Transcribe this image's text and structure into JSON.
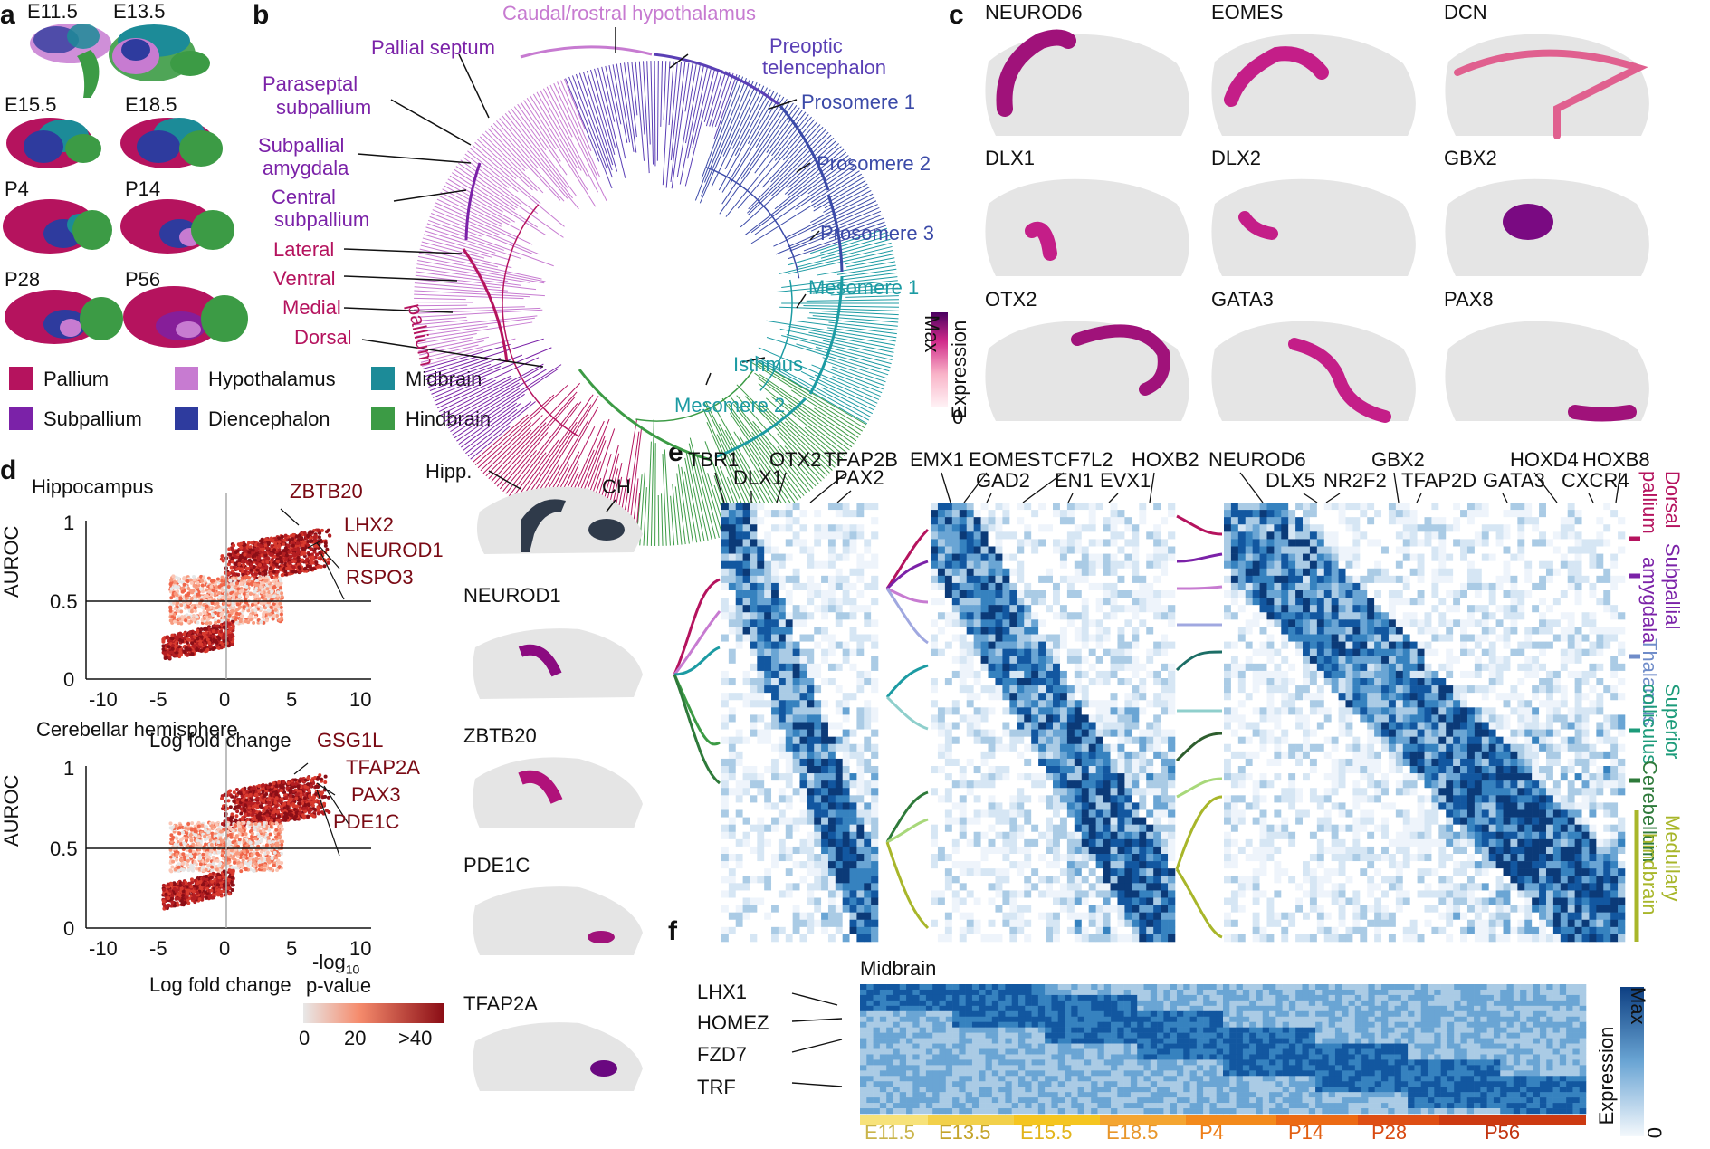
{
  "panels": {
    "a": "a",
    "b": "b",
    "c": "c",
    "d": "d",
    "e": "e",
    "f": "f"
  },
  "panel_a": {
    "stages": [
      "E11.5",
      "E13.5",
      "E15.5",
      "E18.5",
      "P4",
      "P14",
      "P28",
      "P56"
    ],
    "legend": [
      {
        "label": "Pallium",
        "color": "#b5135e"
      },
      {
        "label": "Hypothalamus",
        "color": "#c77bd1"
      },
      {
        "label": "Midbrain",
        "color": "#1c8b98"
      },
      {
        "label": "Subpallium",
        "color": "#7b22a8"
      },
      {
        "label": "Diencephalon",
        "color": "#2e3b9e"
      },
      {
        "label": "Hindbrain",
        "color": "#3c9b45"
      }
    ]
  },
  "panel_b": {
    "labels": [
      {
        "text": "Caudal/rostral hypothalamus",
        "color": "#c77bd1"
      },
      {
        "text": "Pallial septum",
        "color": "#7b22a8"
      },
      {
        "text": "Preoptic",
        "color": "#5a3fb5"
      },
      {
        "text": "telencephalon",
        "color": "#5a3fb5"
      },
      {
        "text": "Paraseptal",
        "color": "#7b22a8"
      },
      {
        "text": "subpallium",
        "color": "#7b22a8"
      },
      {
        "text": "Prosomere 1",
        "color": "#3b4aa8"
      },
      {
        "text": "Subpallial",
        "color": "#7b22a8"
      },
      {
        "text": "amygdala",
        "color": "#7b22a8"
      },
      {
        "text": "Prosomere 2",
        "color": "#3b4aa8"
      },
      {
        "text": "Central",
        "color": "#7b22a8"
      },
      {
        "text": "subpallium",
        "color": "#7b22a8"
      },
      {
        "text": "Prosomere 3",
        "color": "#3b4aa8"
      },
      {
        "text": "Lateral",
        "color": "#b5135e"
      },
      {
        "text": "Ventral",
        "color": "#b5135e"
      },
      {
        "text": "Mesomere 1",
        "color": "#1c9ba3"
      },
      {
        "text": "Medial",
        "color": "#b5135e"
      },
      {
        "text": "Dorsal",
        "color": "#b5135e"
      },
      {
        "text": "Isthmus",
        "color": "#1c9ba3"
      },
      {
        "text": "Mesomere 2",
        "color": "#1c9ba3"
      },
      {
        "text": "pallium",
        "color": "#b5135e"
      }
    ]
  },
  "panel_c": {
    "genes": [
      "NEUROD6",
      "EOMES",
      "DCN",
      "DLX1",
      "DLX2",
      "GBX2",
      "OTX2",
      "GATA3",
      "PAX8"
    ],
    "colorbar": {
      "title": "Expression",
      "max": "Max",
      "min": "0"
    }
  },
  "panel_d": {
    "plots": [
      {
        "title": "Hippocampus",
        "genes": [
          "ZBTB20",
          "LHX2",
          "NEUROD1",
          "RSPO3"
        ]
      },
      {
        "title": "Cerebellar hemisphere",
        "genes": [
          "GSG1L",
          "TFAP2A",
          "PAX3",
          "PDE1C"
        ]
      }
    ],
    "ylabel": "AUROC",
    "xlabel": "Log fold change",
    "xticks": [
      "-10",
      "-5",
      "0",
      "5",
      "10"
    ],
    "yticks": [
      "0",
      "0.5",
      "1"
    ],
    "pval_legend": {
      "line1": "-log",
      "sub": "10",
      "line2": "p-value",
      "ticks": [
        "0",
        "20",
        ">40"
      ]
    },
    "maps": [
      "Hipp.",
      "CH",
      "NEUROD1",
      "ZBTB20",
      "PDE1C",
      "TFAP2A"
    ]
  },
  "panel_e": {
    "genes_block1": [
      "TBR1",
      "DLX1",
      "OTX2",
      "TFAP2B",
      "PAX2"
    ],
    "genes_block2": [
      "EMX1",
      "EOMES",
      "GAD2",
      "TCF7L2",
      "EN1",
      "EVX1",
      "HOXB2"
    ],
    "genes_block3": [
      "NEUROD6",
      "DLX5",
      "NR2F2",
      "GBX2",
      "TFAP2D",
      "GATA3",
      "HOXD4",
      "CXCR4",
      "HOXB8"
    ],
    "regions": [
      {
        "text": "Dorsal",
        "color": "#b5135e"
      },
      {
        "text": "pallium",
        "color": "#b5135e"
      },
      {
        "text": "Subpallial",
        "color": "#7b22a8"
      },
      {
        "text": "amygdala",
        "color": "#7b22a8"
      },
      {
        "text": "Thalamus",
        "color": "#6f8cc9"
      },
      {
        "text": "Superior",
        "color": "#1c9b7a"
      },
      {
        "text": "colliculus",
        "color": "#1c9b7a"
      },
      {
        "text": "Cerebellum",
        "color": "#2e7a3a"
      },
      {
        "text": "Medullary",
        "color": "#a8b62a"
      },
      {
        "text": "hindbrain",
        "color": "#a8b62a"
      }
    ]
  },
  "panel_f": {
    "title": "Midbrain",
    "genes": [
      "LHX1",
      "HOMEZ",
      "FZD7",
      "TRF"
    ],
    "stages": [
      {
        "label": "E11.5",
        "color": "#f7e27a",
        "text": "#c9b44a"
      },
      {
        "label": "E13.5",
        "color": "#f2d04a",
        "text": "#c4a42a"
      },
      {
        "label": "E15.5",
        "color": "#f5c520",
        "text": "#e2b41a"
      },
      {
        "label": "E18.5",
        "color": "#f4a531",
        "text": "#e8962a"
      },
      {
        "label": "P4",
        "color": "#f38a1c",
        "text": "#ee7e18"
      },
      {
        "label": "P14",
        "color": "#ec6a14",
        "text": "#e25f12"
      },
      {
        "label": "P28",
        "color": "#de4e14",
        "text": "#d84a12"
      },
      {
        "label": "P56",
        "color": "#cc3a12",
        "text": "#c23410"
      }
    ],
    "colorbar": {
      "title": "Expression",
      "max": "Max",
      "min": "0"
    }
  }
}
